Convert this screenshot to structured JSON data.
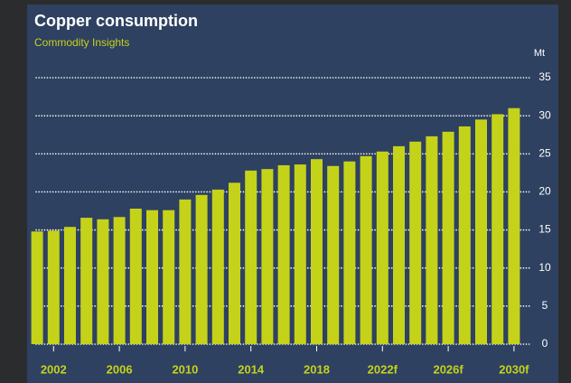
{
  "chart_data": {
    "type": "bar",
    "title": "Copper consumption",
    "subtitle": "Commodity Insights",
    "y_unit": "Mt",
    "categories": [
      null,
      "2002",
      null,
      null,
      null,
      "2006",
      null,
      null,
      null,
      "2010",
      null,
      null,
      null,
      "2014",
      null,
      null,
      null,
      "2018",
      null,
      null,
      null,
      "2022f",
      null,
      null,
      null,
      "2026f",
      null,
      null,
      null,
      "2030f"
    ],
    "values": [
      14.8,
      14.9,
      15.4,
      16.6,
      16.4,
      16.7,
      17.8,
      17.6,
      17.6,
      19.0,
      19.6,
      20.3,
      21.2,
      22.8,
      23.0,
      23.5,
      23.6,
      24.3,
      23.4,
      24.0,
      24.7,
      25.3,
      26.0,
      26.6,
      27.3,
      27.9,
      28.6,
      29.5,
      30.2,
      31.0
    ],
    "color": "#c5d21a",
    "ylim": [
      0,
      35
    ],
    "yticks": [
      0,
      5,
      10,
      15,
      20,
      25,
      30,
      35
    ],
    "grid": true
  }
}
